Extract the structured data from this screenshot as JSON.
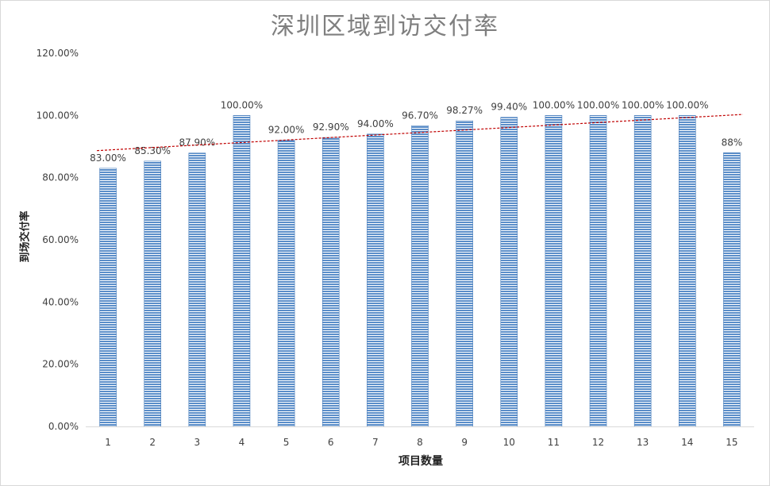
{
  "chart_data": {
    "type": "bar",
    "title": "深圳区域到访交付率",
    "xlabel": "项目数量",
    "ylabel": "到场交付率",
    "categories": [
      "1",
      "2",
      "3",
      "4",
      "5",
      "6",
      "7",
      "8",
      "9",
      "10",
      "11",
      "12",
      "13",
      "14",
      "15"
    ],
    "series": [
      {
        "values": [
          83.0,
          85.3,
          87.9,
          100.0,
          92.0,
          92.9,
          94.0,
          96.7,
          98.27,
          99.4,
          100.0,
          100.0,
          100.0,
          100.0,
          88.0
        ],
        "data_labels": [
          "83.00%",
          "85.30%",
          "87.90%",
          "100.00%",
          "92.00%",
          "92.90%",
          "94.00%",
          "96.70%",
          "98.27%",
          "99.40%",
          "100.00%",
          "100.00%",
          "100.00%",
          "100.00%",
          "88%"
        ]
      }
    ],
    "ylim": [
      0,
      120
    ],
    "yticks": [
      "0.00%",
      "20.00%",
      "40.00%",
      "60.00%",
      "80.00%",
      "100.00%",
      "120.00%"
    ],
    "ytick_values": [
      0,
      20,
      40,
      60,
      80,
      100,
      120
    ],
    "trendline": {
      "type": "linear",
      "style": "dashed",
      "color": "#c00000"
    },
    "bar_color": "#5b8ec9",
    "grid": false,
    "legend": "none"
  }
}
